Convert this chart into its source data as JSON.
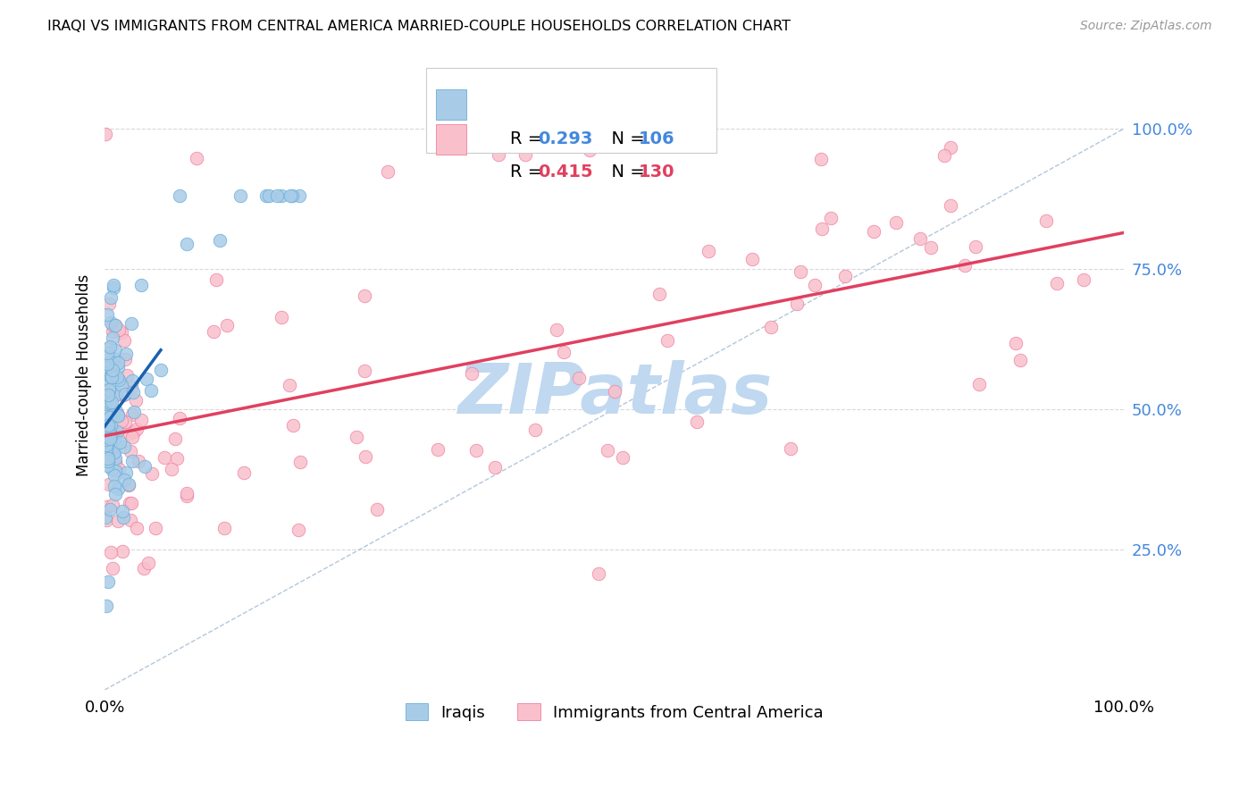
{
  "title": "IRAQI VS IMMIGRANTS FROM CENTRAL AMERICA MARRIED-COUPLE HOUSEHOLDS CORRELATION CHART",
  "source": "Source: ZipAtlas.com",
  "legend_label1": "Iraqis",
  "legend_label2": "Immigrants from Central America",
  "R1": "0.293",
  "N1": "106",
  "R2": "0.415",
  "N2": "130",
  "color_blue_fill": "#a8cce8",
  "color_blue_edge": "#6aaed6",
  "color_blue_line": "#1a60b0",
  "color_pink_fill": "#f9c0cc",
  "color_pink_edge": "#f080a0",
  "color_pink_line": "#e04060",
  "color_dashed": "#a0b8d0",
  "watermark": "ZIPatlas",
  "watermark_color": "#c0d8f0",
  "axis_label": "Married-couple Households",
  "grid_color": "#d8d8d8",
  "ytick_color": "#4488dd",
  "xtick_left": "0.0%",
  "xtick_right": "100.0%",
  "yticks": [
    0.25,
    0.5,
    0.75,
    1.0
  ],
  "ytick_labels": [
    "25.0%",
    "50.0%",
    "75.0%",
    "100.0%"
  ]
}
